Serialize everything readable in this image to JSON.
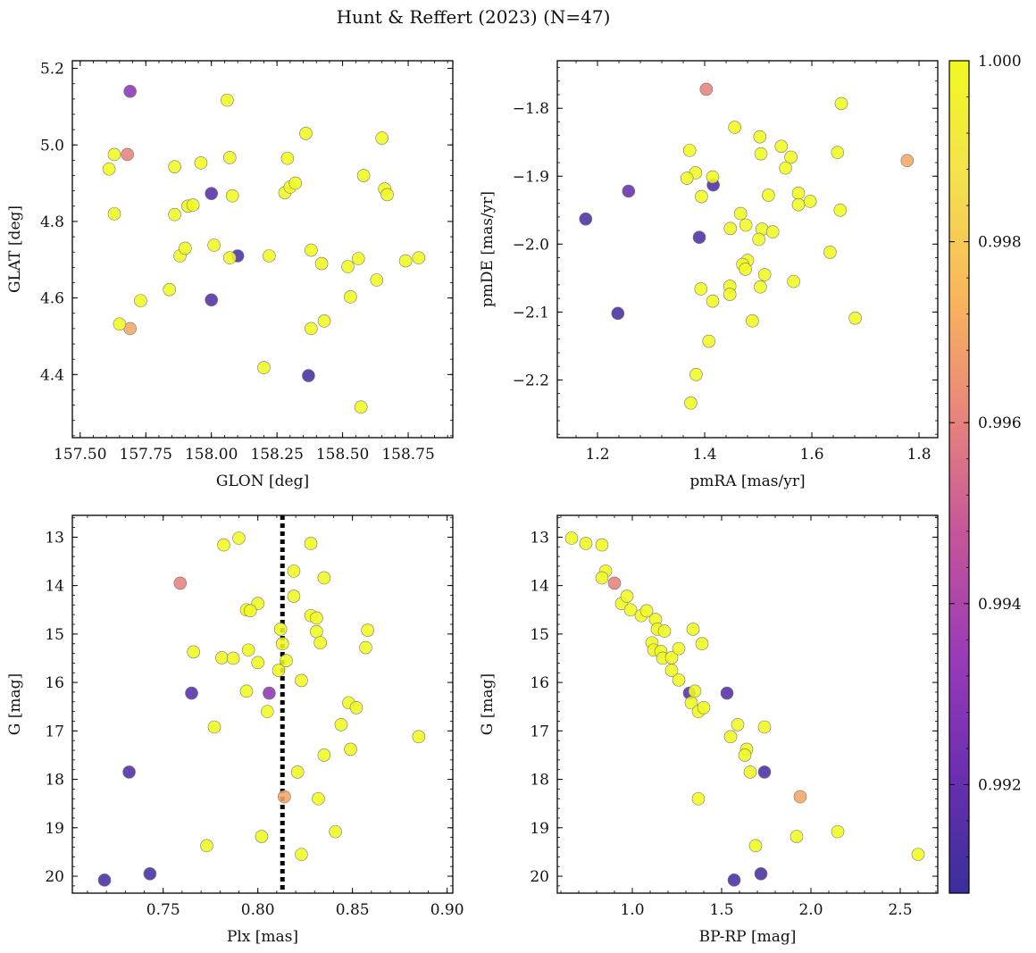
{
  "title": "Hunt & Reffert (2023) (N=47)",
  "colormap": {
    "name": "plasma",
    "min": 0.9908,
    "max": 1.0,
    "ticks": [
      0.992,
      0.994,
      0.996,
      0.998,
      1.0
    ],
    "tick_labels": [
      "0.992",
      "0.994",
      "0.996",
      "0.998",
      "1.000"
    ],
    "stops": [
      "#3a2f9a",
      "#6b2fb0",
      "#9a3bb8",
      "#c4549a",
      "#e7847c",
      "#f9b55c",
      "#f3e14d",
      "#f0f921"
    ]
  },
  "chart_data": [
    {
      "id": "glon-glat",
      "type": "scatter",
      "xlabel": "GLON [deg]",
      "ylabel": "GLAT [deg]",
      "xlim": [
        157.47,
        158.92
      ],
      "ylim": [
        4.235,
        5.22
      ],
      "xticks": [
        157.5,
        157.75,
        158.0,
        158.25,
        158.5,
        158.75
      ],
      "xtick_labels": [
        "157.50",
        "157.75",
        "158.00",
        "158.25",
        "158.50",
        "158.75"
      ],
      "yticks": [
        4.4,
        4.6,
        4.8,
        5.0,
        5.2
      ],
      "ytick_labels": [
        "4.4",
        "4.6",
        "4.8",
        "5.0",
        "5.2"
      ],
      "points": [
        [
          157.69,
          5.14,
          0.993
        ],
        [
          157.68,
          4.975,
          0.996
        ],
        [
          157.69,
          4.52,
          0.997
        ],
        [
          158.0,
          4.873,
          0.9915
        ],
        [
          158.0,
          4.595,
          0.9915
        ],
        [
          158.1,
          4.71,
          0.9913
        ],
        [
          158.37,
          4.397,
          0.9912
        ],
        [
          157.61,
          4.937,
          1.0
        ],
        [
          157.63,
          4.975,
          1.0
        ],
        [
          157.63,
          4.82,
          1.0
        ],
        [
          157.65,
          4.532,
          1.0
        ],
        [
          157.73,
          4.593,
          1.0
        ],
        [
          157.84,
          4.622,
          1.0
        ],
        [
          157.86,
          4.943,
          1.0
        ],
        [
          157.86,
          4.818,
          1.0
        ],
        [
          157.88,
          4.71,
          1.0
        ],
        [
          157.9,
          4.73,
          1.0
        ],
        [
          157.91,
          4.84,
          1.0
        ],
        [
          157.93,
          4.843,
          1.0
        ],
        [
          157.96,
          4.953,
          1.0
        ],
        [
          158.01,
          4.738,
          1.0
        ],
        [
          158.06,
          5.117,
          1.0
        ],
        [
          158.07,
          4.967,
          1.0
        ],
        [
          158.07,
          4.705,
          1.0
        ],
        [
          158.08,
          4.867,
          1.0
        ],
        [
          158.2,
          4.418,
          1.0
        ],
        [
          158.22,
          4.71,
          1.0
        ],
        [
          158.28,
          4.875,
          1.0
        ],
        [
          158.29,
          4.965,
          1.0
        ],
        [
          158.3,
          4.89,
          1.0
        ],
        [
          158.32,
          4.9,
          1.0
        ],
        [
          158.36,
          5.03,
          1.0
        ],
        [
          158.38,
          4.725,
          1.0
        ],
        [
          158.38,
          4.52,
          1.0
        ],
        [
          158.42,
          4.69,
          1.0
        ],
        [
          158.43,
          4.54,
          1.0
        ],
        [
          158.52,
          4.682,
          1.0
        ],
        [
          158.53,
          4.603,
          1.0
        ],
        [
          158.56,
          4.703,
          1.0
        ],
        [
          158.57,
          4.315,
          1.0
        ],
        [
          158.58,
          4.92,
          1.0
        ],
        [
          158.63,
          4.647,
          1.0
        ],
        [
          158.65,
          5.018,
          1.0
        ],
        [
          158.66,
          4.885,
          1.0
        ],
        [
          158.67,
          4.87,
          1.0
        ],
        [
          158.74,
          4.697,
          1.0
        ],
        [
          158.79,
          4.705,
          1.0
        ]
      ]
    },
    {
      "id": "pmra-pmde",
      "type": "scatter",
      "xlabel": "pmRA [mas/yr]",
      "ylabel": "pmDE [mas/yr]",
      "xlim": [
        1.125,
        1.835
      ],
      "ylim": [
        -2.285,
        -1.73
      ],
      "xticks": [
        1.2,
        1.4,
        1.6,
        1.8
      ],
      "xtick_labels": [
        "1.2",
        "1.4",
        "1.6",
        "1.8"
      ],
      "yticks": [
        -2.2,
        -2.1,
        -2.0,
        -1.9,
        -1.8
      ],
      "ytick_labels": [
        "−2.2",
        "−2.1",
        "−2.0",
        "−1.9",
        "−1.8"
      ],
      "points": [
        [
          1.403,
          -1.772,
          0.996
        ],
        [
          1.778,
          -1.877,
          0.997
        ],
        [
          1.178,
          -1.963,
          0.9913
        ],
        [
          1.258,
          -1.922,
          0.992
        ],
        [
          1.416,
          -1.913,
          0.9913
        ],
        [
          1.39,
          -1.99,
          0.9913
        ],
        [
          1.238,
          -2.102,
          0.9912
        ],
        [
          1.655,
          -1.793,
          1.0
        ],
        [
          1.456,
          -1.828,
          1.0
        ],
        [
          1.503,
          -1.842,
          1.0
        ],
        [
          1.543,
          -1.856,
          1.0
        ],
        [
          1.505,
          -1.867,
          1.0
        ],
        [
          1.561,
          -1.872,
          1.0
        ],
        [
          1.648,
          -1.865,
          1.0
        ],
        [
          1.372,
          -1.862,
          1.0
        ],
        [
          1.383,
          -1.895,
          1.0
        ],
        [
          1.367,
          -1.903,
          1.0
        ],
        [
          1.415,
          -1.901,
          1.0
        ],
        [
          1.551,
          -1.888,
          1.0
        ],
        [
          1.394,
          -1.93,
          1.0
        ],
        [
          1.519,
          -1.928,
          1.0
        ],
        [
          1.575,
          -1.925,
          1.0
        ],
        [
          1.597,
          -1.937,
          1.0
        ],
        [
          1.575,
          -1.942,
          1.0
        ],
        [
          1.653,
          -1.95,
          1.0
        ],
        [
          1.467,
          -1.955,
          1.0
        ],
        [
          1.477,
          -1.972,
          1.0
        ],
        [
          1.448,
          -1.977,
          1.0
        ],
        [
          1.507,
          -1.978,
          1.0
        ],
        [
          1.527,
          -1.982,
          1.0
        ],
        [
          1.501,
          -1.993,
          1.0
        ],
        [
          1.48,
          -2.024,
          1.0
        ],
        [
          1.471,
          -2.03,
          1.0
        ],
        [
          1.476,
          -2.037,
          1.0
        ],
        [
          1.634,
          -2.012,
          1.0
        ],
        [
          1.566,
          -2.055,
          1.0
        ],
        [
          1.447,
          -2.062,
          1.0
        ],
        [
          1.504,
          -2.063,
          1.0
        ],
        [
          1.393,
          -2.066,
          1.0
        ],
        [
          1.447,
          -2.074,
          1.0
        ],
        [
          1.415,
          -2.084,
          1.0
        ],
        [
          1.512,
          -2.045,
          1.0
        ],
        [
          1.489,
          -2.113,
          1.0
        ],
        [
          1.681,
          -2.109,
          1.0
        ],
        [
          1.408,
          -2.143,
          1.0
        ],
        [
          1.384,
          -2.192,
          1.0
        ],
        [
          1.374,
          -2.234,
          1.0
        ]
      ]
    },
    {
      "id": "plx-g",
      "type": "scatter",
      "xlabel": "Plx [mas]",
      "ylabel": "G [mag]",
      "xlim": [
        0.702,
        0.903
      ],
      "ylim": [
        20.35,
        12.55
      ],
      "invert_y": true,
      "xticks": [
        0.75,
        0.8,
        0.85,
        0.9
      ],
      "xtick_labels": [
        "0.75",
        "0.80",
        "0.85",
        "0.90"
      ],
      "yticks": [
        13,
        14,
        15,
        16,
        17,
        18,
        19,
        20
      ],
      "ytick_labels": [
        "13",
        "14",
        "15",
        "16",
        "17",
        "18",
        "19",
        "20"
      ],
      "vline": {
        "x": 0.813,
        "style": "dotted",
        "color": "#000000"
      },
      "points": [
        [
          0.759,
          13.95,
          0.996
        ],
        [
          0.814,
          18.36,
          0.997
        ],
        [
          0.806,
          16.22,
          0.993
        ],
        [
          0.765,
          16.22,
          0.9915
        ],
        [
          0.732,
          17.85,
          0.9913
        ],
        [
          0.743,
          19.95,
          0.9912
        ],
        [
          0.719,
          20.08,
          0.9912
        ],
        [
          0.782,
          13.16,
          1.0
        ],
        [
          0.79,
          13.02,
          1.0
        ],
        [
          0.828,
          13.13,
          1.0
        ],
        [
          0.819,
          13.7,
          1.0
        ],
        [
          0.835,
          13.84,
          1.0
        ],
        [
          0.8,
          14.37,
          1.0
        ],
        [
          0.794,
          14.5,
          1.0
        ],
        [
          0.796,
          14.52,
          1.0
        ],
        [
          0.819,
          14.22,
          1.0
        ],
        [
          0.828,
          14.62,
          1.0
        ],
        [
          0.831,
          14.67,
          1.0
        ],
        [
          0.812,
          14.9,
          1.0
        ],
        [
          0.831,
          14.95,
          1.0
        ],
        [
          0.858,
          14.92,
          1.0
        ],
        [
          0.813,
          15.2,
          1.0
        ],
        [
          0.833,
          15.18,
          1.0
        ],
        [
          0.766,
          15.37,
          1.0
        ],
        [
          0.795,
          15.33,
          1.0
        ],
        [
          0.857,
          15.28,
          1.0
        ],
        [
          0.781,
          15.49,
          1.0
        ],
        [
          0.787,
          15.5,
          1.0
        ],
        [
          0.8,
          15.59,
          1.0
        ],
        [
          0.815,
          15.55,
          1.0
        ],
        [
          0.811,
          15.75,
          1.0
        ],
        [
          0.823,
          15.96,
          1.0
        ],
        [
          0.794,
          16.18,
          1.0
        ],
        [
          0.848,
          16.42,
          1.0
        ],
        [
          0.852,
          16.52,
          1.0
        ],
        [
          0.805,
          16.6,
          1.0
        ],
        [
          0.777,
          16.92,
          1.0
        ],
        [
          0.844,
          16.87,
          1.0
        ],
        [
          0.885,
          17.12,
          1.0
        ],
        [
          0.849,
          17.38,
          1.0
        ],
        [
          0.835,
          17.5,
          1.0
        ],
        [
          0.821,
          17.85,
          1.0
        ],
        [
          0.832,
          18.4,
          1.0
        ],
        [
          0.841,
          19.08,
          1.0
        ],
        [
          0.802,
          19.18,
          1.0
        ],
        [
          0.773,
          19.37,
          1.0
        ],
        [
          0.823,
          19.55,
          1.0
        ]
      ]
    },
    {
      "id": "bprp-g",
      "type": "scatter",
      "xlabel": "BP-RP [mag]",
      "ylabel": "G [mag]",
      "xlim": [
        0.58,
        2.71
      ],
      "ylim": [
        20.35,
        12.55
      ],
      "invert_y": true,
      "xticks": [
        1.0,
        1.5,
        2.0,
        2.5
      ],
      "xtick_labels": [
        "1.0",
        "1.5",
        "2.0",
        "2.5"
      ],
      "yticks": [
        13,
        14,
        15,
        16,
        17,
        18,
        19,
        20
      ],
      "ytick_labels": [
        "13",
        "14",
        "15",
        "16",
        "17",
        "18",
        "19",
        "20"
      ],
      "points": [
        [
          0.9,
          13.95,
          0.996
        ],
        [
          1.94,
          18.36,
          0.997
        ],
        [
          1.32,
          16.22,
          0.9915
        ],
        [
          1.53,
          16.22,
          0.9915
        ],
        [
          1.74,
          17.85,
          0.9913
        ],
        [
          1.72,
          19.95,
          0.9912
        ],
        [
          1.57,
          20.08,
          0.9912
        ],
        [
          0.66,
          13.02,
          1.0
        ],
        [
          0.74,
          13.13,
          1.0
        ],
        [
          0.83,
          13.16,
          1.0
        ],
        [
          0.85,
          13.7,
          1.0
        ],
        [
          0.83,
          13.84,
          1.0
        ],
        [
          0.94,
          14.37,
          1.0
        ],
        [
          0.97,
          14.22,
          1.0
        ],
        [
          0.99,
          14.5,
          1.0
        ],
        [
          1.05,
          14.62,
          1.0
        ],
        [
          1.08,
          14.52,
          1.0
        ],
        [
          1.11,
          15.18,
          1.0
        ],
        [
          1.13,
          14.7,
          1.0
        ],
        [
          1.14,
          14.9,
          1.0
        ],
        [
          1.12,
          15.33,
          1.0
        ],
        [
          1.16,
          15.36,
          1.0
        ],
        [
          1.18,
          14.94,
          1.0
        ],
        [
          1.17,
          15.5,
          1.0
        ],
        [
          1.22,
          15.49,
          1.0
        ],
        [
          1.26,
          15.3,
          1.0
        ],
        [
          1.22,
          15.75,
          1.0
        ],
        [
          1.26,
          15.95,
          1.0
        ],
        [
          1.34,
          14.9,
          1.0
        ],
        [
          1.39,
          15.2,
          1.0
        ],
        [
          1.33,
          16.42,
          1.0
        ],
        [
          1.35,
          16.18,
          1.0
        ],
        [
          1.37,
          16.6,
          1.0
        ],
        [
          1.4,
          16.52,
          1.0
        ],
        [
          1.59,
          16.87,
          1.0
        ],
        [
          1.55,
          17.12,
          1.0
        ],
        [
          1.74,
          16.92,
          1.0
        ],
        [
          1.64,
          17.38,
          1.0
        ],
        [
          1.63,
          17.5,
          1.0
        ],
        [
          1.66,
          17.85,
          1.0
        ],
        [
          1.37,
          18.4,
          1.0
        ],
        [
          1.69,
          19.37,
          1.0
        ],
        [
          1.92,
          19.18,
          1.0
        ],
        [
          2.15,
          19.08,
          1.0
        ],
        [
          2.6,
          19.55,
          1.0
        ]
      ]
    }
  ]
}
